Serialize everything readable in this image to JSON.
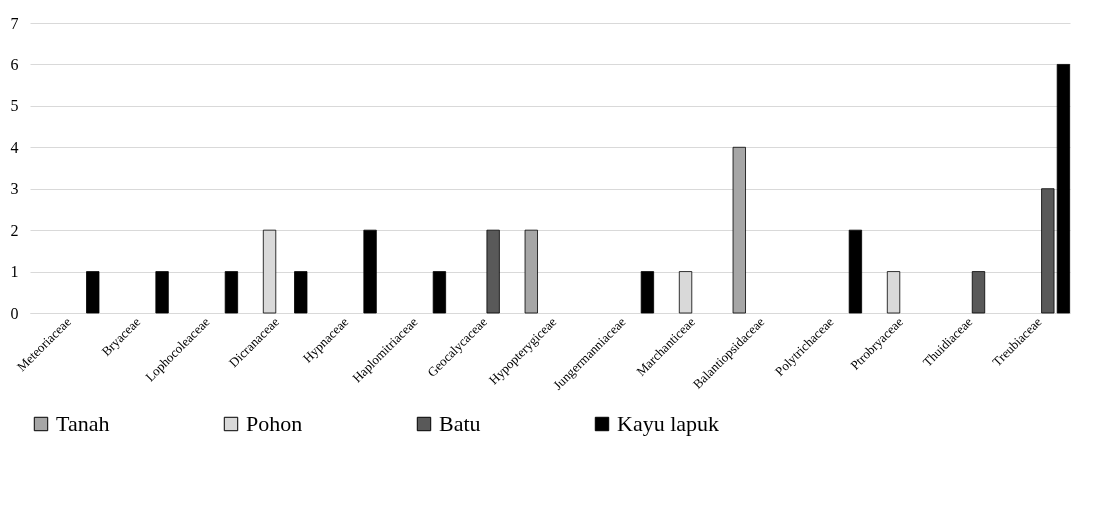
{
  "chart_data": {
    "type": "bar",
    "categories": [
      "Meteoriaceae",
      "Bryaceae",
      "Lophocoleaceae",
      "Dicranaceae",
      "Hypnaceae",
      "Haplomitriaceae",
      "Geocalycaceae",
      "Hypopterygiceae",
      "Jungermanniaceae",
      "Marchanticeae",
      "Balantiopsidaceae",
      "Polytrichaceae",
      "Ptrobryaceae",
      "Thuidiaceae",
      "Treubiaceae"
    ],
    "series": [
      {
        "name": "Tanah",
        "color": "#a6a6a6",
        "values": [
          null,
          null,
          null,
          null,
          null,
          null,
          null,
          2,
          null,
          null,
          4,
          null,
          null,
          null,
          null
        ]
      },
      {
        "name": "Pohon",
        "color": "#d9d9d9",
        "values": [
          null,
          null,
          null,
          2,
          null,
          null,
          null,
          null,
          null,
          1,
          null,
          null,
          1,
          null,
          null
        ]
      },
      {
        "name": "Batu",
        "color": "#595959",
        "values": [
          null,
          null,
          null,
          null,
          null,
          null,
          2,
          null,
          null,
          null,
          null,
          null,
          null,
          1,
          3
        ]
      },
      {
        "name": "Kayu lapuk",
        "color": "#000000",
        "values": [
          1,
          1,
          1,
          1,
          2,
          1,
          null,
          null,
          1,
          null,
          null,
          2,
          null,
          null,
          6
        ]
      }
    ],
    "ylim": [
      0,
      7
    ],
    "yticks": [
      0,
      1,
      2,
      3,
      4,
      5,
      6,
      7
    ],
    "grid": "y",
    "legend": "bottom"
  }
}
